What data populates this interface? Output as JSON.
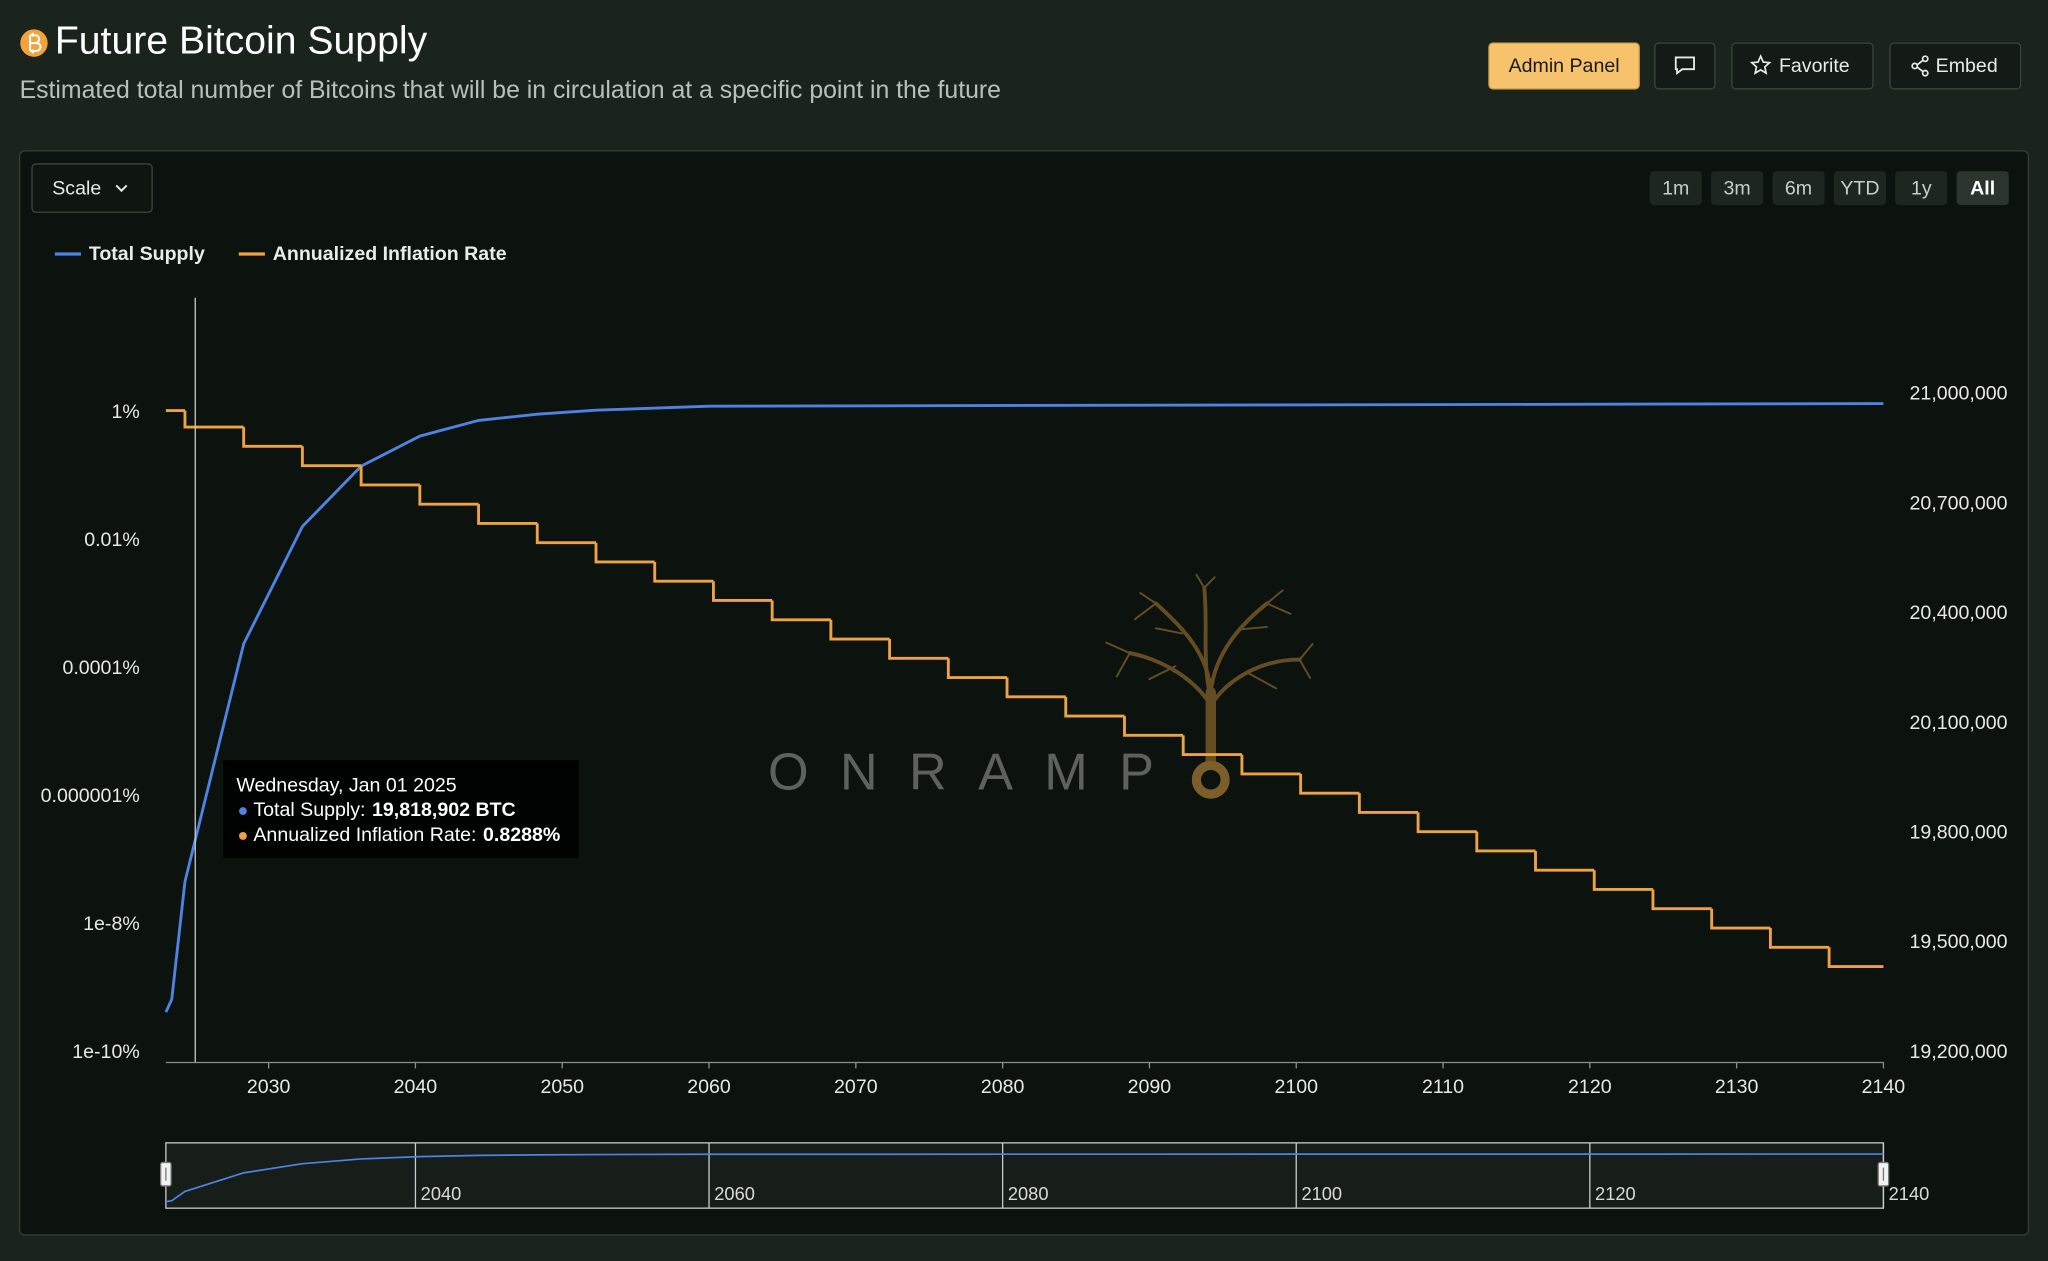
{
  "header": {
    "title": "Future Bitcoin Supply",
    "subtitle": "Estimated total number of Bitcoins that will be in circulation at a specific point in the future"
  },
  "toolbar": {
    "buttons": [
      "Admin Panel",
      "Favorite",
      "Embed"
    ]
  },
  "controls": {
    "scale": "Scale",
    "ranges": [
      "1m",
      "3m",
      "6m",
      "YTD",
      "1y",
      "All"
    ],
    "active_range": "All"
  },
  "chart_data": {
    "type": "line",
    "xlim": [
      2023,
      2140
    ],
    "xticks": [
      2030,
      2040,
      2050,
      2060,
      2070,
      2080,
      2090,
      2100,
      2110,
      2120,
      2130,
      2140
    ],
    "ylog": true,
    "ylim": [
      1e-10,
      100
    ],
    "yticks": [
      {
        "value": 1,
        "label": "1%"
      },
      {
        "value": 0.01,
        "label": "0.01%"
      },
      {
        "value": 0.0001,
        "label": "0.0001%"
      },
      {
        "value": 1e-06,
        "label": "0.000001%"
      },
      {
        "value": 1e-08,
        "label": "1e-8%"
      },
      {
        "value": 1e-10,
        "label": "1e-10%"
      }
    ],
    "y2lim": [
      19200000,
      21300000
    ],
    "y2ticks": [
      {
        "value": 21000000,
        "label": "21,000,000"
      },
      {
        "value": 20700000,
        "label": "20,700,000"
      },
      {
        "value": 20400000,
        "label": "20,400,000"
      },
      {
        "value": 20100000,
        "label": "20,100,000"
      },
      {
        "value": 19800000,
        "label": "19,800,000"
      },
      {
        "value": 19500000,
        "label": "19,500,000"
      },
      {
        "value": 19200000,
        "label": "19,200,000"
      }
    ],
    "grid": false,
    "legend": "top-left",
    "series": [
      {
        "name": "Total Supply",
        "color": "#4f83e3",
        "axis": "y2",
        "x": [
          2023,
          2023.4,
          2024.3,
          2028.3,
          2032.3,
          2036.3,
          2040.3,
          2044.3,
          2048.3,
          2052.3,
          2060,
          2140
        ],
        "values": [
          19336000,
          19371000,
          19693000,
          20343000,
          20664000,
          20829000,
          20911000,
          20954000,
          20971000,
          20982000,
          20993000,
          21000000
        ]
      },
      {
        "name": "Annualized Inflation Rate",
        "color": "#eea243",
        "axis": "y",
        "step": "after",
        "x": [
          2023,
          2024.3,
          2028.3,
          2032.3,
          2036.3,
          2040.3,
          2044.3,
          2048.3,
          2052.3,
          2056.3,
          2060.3,
          2064.3,
          2068.3,
          2072.3,
          2076.3,
          2080.3,
          2084.3,
          2088.3,
          2092.3,
          2096.3,
          2100.3,
          2104.3,
          2108.3,
          2112.3,
          2116.3,
          2120.3,
          2124.3,
          2128.3,
          2132.3,
          2136.3
        ],
        "values": [
          1.5,
          0.8288,
          0.4144,
          0.2072,
          0.1036,
          0.0518,
          0.0259,
          0.01295,
          0.006475,
          0.003238,
          0.001619,
          0.0008094,
          0.0004047,
          0.0002023,
          0.0001012,
          5.059e-05,
          2.529e-05,
          1.265e-05,
          6.323e-06,
          3.162e-06,
          1.581e-06,
          7.904e-07,
          3.952e-07,
          1.976e-07,
          9.88e-08,
          4.94e-08,
          2.47e-08,
          1.235e-08,
          6.175e-09,
          3.088e-09
        ]
      }
    ],
    "tooltip": {
      "x": 2025,
      "date": "Wednesday, Jan 01 2025",
      "items": [
        {
          "label": "Total Supply:",
          "value": "19,818,902 BTC"
        },
        {
          "label": "Annualized Inflation Rate:",
          "value": "0.8288%"
        }
      ]
    },
    "navigator": {
      "xticks": [
        2040,
        2060,
        2080,
        2100,
        2120,
        2140
      ]
    },
    "watermark": "ONRAMP"
  }
}
